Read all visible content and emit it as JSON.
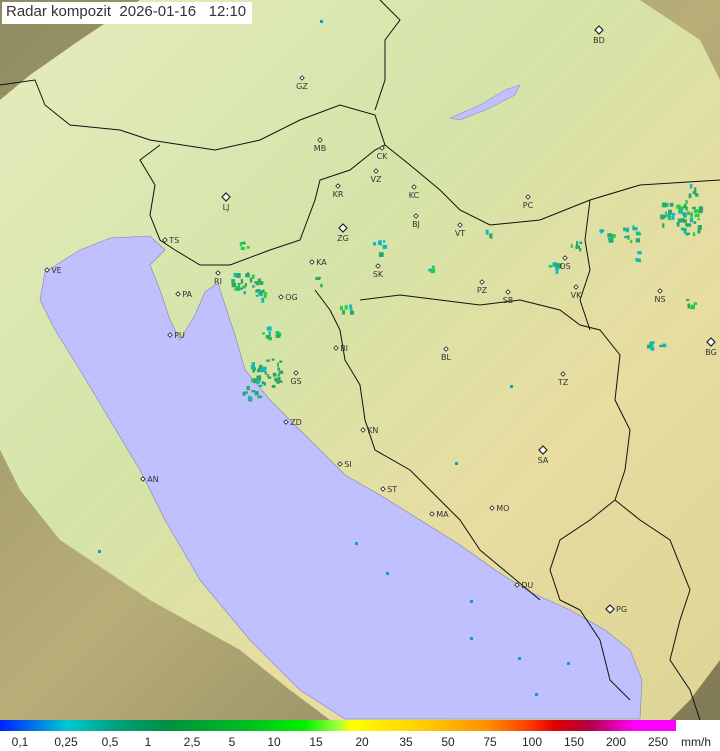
{
  "title": "Radar kompozit  2026-01-16   12:10",
  "legend": {
    "ticks": [
      "0,1",
      "0,25",
      "0,5",
      "1",
      "2,5",
      "5",
      "10",
      "15",
      "20",
      "35",
      "50",
      "75",
      "100",
      "150",
      "200",
      "250"
    ],
    "unit": "mm/h"
  },
  "cities": [
    {
      "code": "BD",
      "capital": true
    },
    {
      "code": "GZ"
    },
    {
      "code": "MB"
    },
    {
      "code": "CK"
    },
    {
      "code": "VZ"
    },
    {
      "code": "KR"
    },
    {
      "code": "KC"
    },
    {
      "code": "PC"
    },
    {
      "code": "LJ",
      "capital": true
    },
    {
      "code": "BJ"
    },
    {
      "code": "ZG",
      "capital": true
    },
    {
      "code": "VT"
    },
    {
      "code": "TS"
    },
    {
      "code": "VE"
    },
    {
      "code": "RI"
    },
    {
      "code": "KA"
    },
    {
      "code": "SK"
    },
    {
      "code": "OS"
    },
    {
      "code": "PA"
    },
    {
      "code": "OG"
    },
    {
      "code": "PZ"
    },
    {
      "code": "SB"
    },
    {
      "code": "VK"
    },
    {
      "code": "NS"
    },
    {
      "code": "PU"
    },
    {
      "code": "BG",
      "capital": true
    },
    {
      "code": "BI"
    },
    {
      "code": "BL"
    },
    {
      "code": "GS"
    },
    {
      "code": "TZ"
    },
    {
      "code": "ZD"
    },
    {
      "code": "KN"
    },
    {
      "code": "SA",
      "capital": true
    },
    {
      "code": "AN"
    },
    {
      "code": "SI"
    },
    {
      "code": "ST"
    },
    {
      "code": "MA"
    },
    {
      "code": "MO"
    },
    {
      "code": "DU"
    },
    {
      "code": "PG",
      "capital": true
    }
  ],
  "colors": {
    "sea": "#c0c0ff",
    "coverage": "#dfe6b4",
    "terrain": "#a8a070",
    "echo": "#2aa86a"
  }
}
